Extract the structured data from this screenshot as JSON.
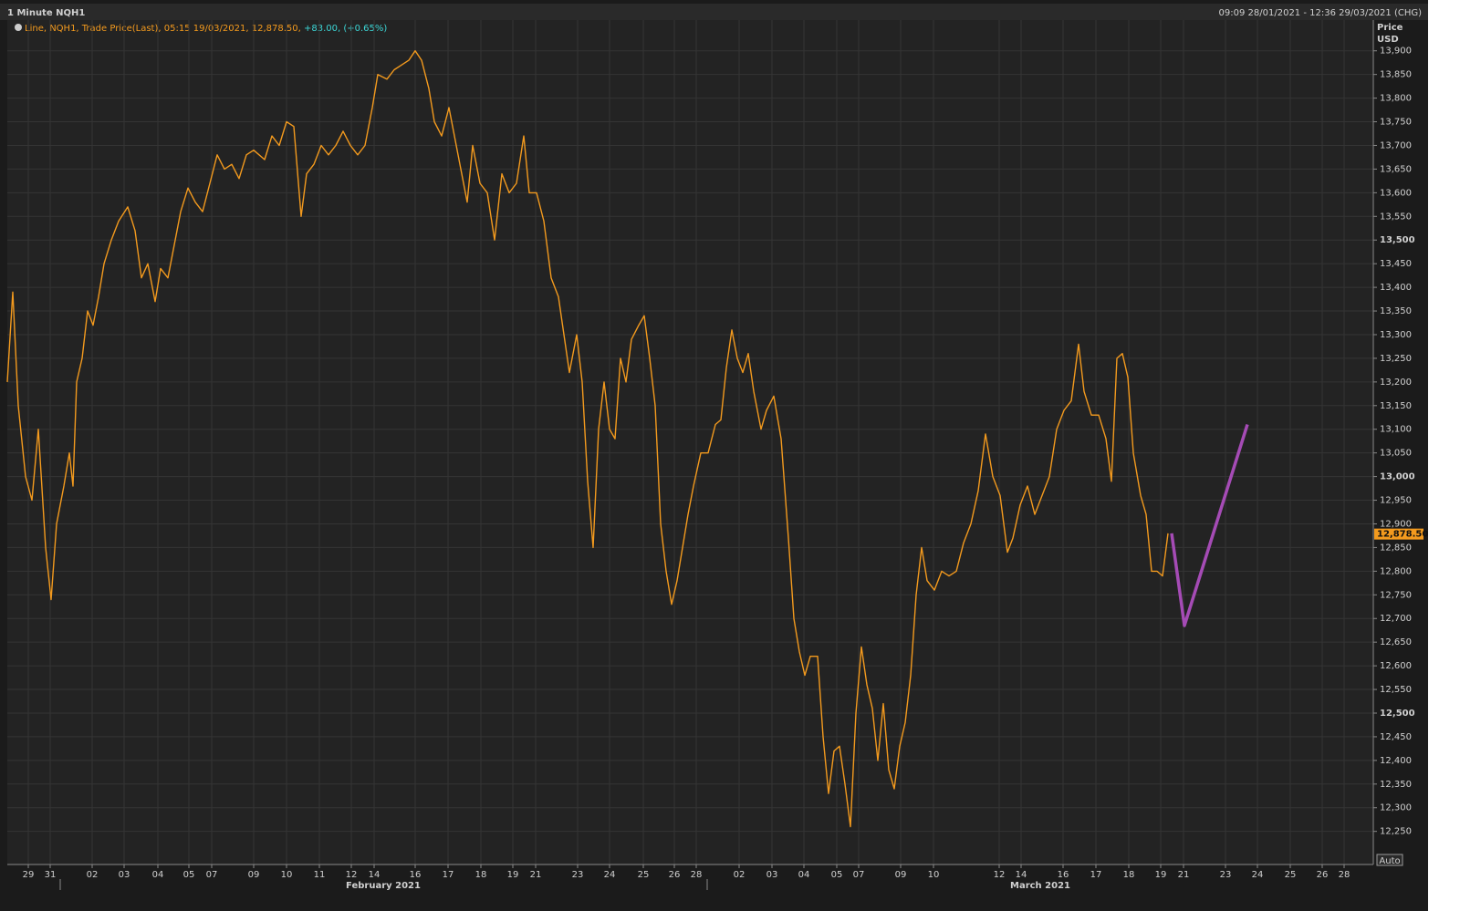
{
  "chart_data": {
    "type": "line",
    "title": "1 Minute NQH1",
    "range_text": "09:09 28/01/2021 - 12:36 29/03/2021 (CHG)",
    "legend_text": "Line, NQH1, Trade Price(Last), 05:15 19/03/2021, 12,878.50,",
    "change_text": "+83.00, (+0.65%)",
    "y_axis_label": "Price",
    "y_axis_unit": "USD",
    "scale_mode": "Auto",
    "months": [
      {
        "value": 420,
        "label": "February 2021"
      },
      {
        "value": 1140,
        "label": "March 2021"
      }
    ],
    "month_separators": [
      66,
      775
    ],
    "last_price": {
      "value": 12878.5,
      "label": "12,878.50"
    },
    "grid": true,
    "xlim": [
      8,
      1505
    ],
    "ylim": [
      12180,
      13965
    ],
    "xticks": [
      {
        "value": 31,
        "label": "29"
      },
      {
        "value": 55,
        "label": "31"
      },
      {
        "value": 101,
        "label": "02"
      },
      {
        "value": 136,
        "label": "03"
      },
      {
        "value": 173,
        "label": "04"
      },
      {
        "value": 207,
        "label": "05"
      },
      {
        "value": 232,
        "label": "07"
      },
      {
        "value": 278,
        "label": "09"
      },
      {
        "value": 314,
        "label": "10"
      },
      {
        "value": 350,
        "label": "11"
      },
      {
        "value": 385,
        "label": "12"
      },
      {
        "value": 410,
        "label": "14"
      },
      {
        "value": 455,
        "label": "16"
      },
      {
        "value": 491,
        "label": "17"
      },
      {
        "value": 527,
        "label": "18"
      },
      {
        "value": 562,
        "label": "19"
      },
      {
        "value": 587,
        "label": "21"
      },
      {
        "value": 633,
        "label": "23"
      },
      {
        "value": 668,
        "label": "24"
      },
      {
        "value": 705,
        "label": "25"
      },
      {
        "value": 739,
        "label": "26"
      },
      {
        "value": 763,
        "label": "28"
      },
      {
        "value": 810,
        "label": "02"
      },
      {
        "value": 846,
        "label": "03"
      },
      {
        "value": 881,
        "label": "04"
      },
      {
        "value": 917,
        "label": "05"
      },
      {
        "value": 941,
        "label": "07"
      },
      {
        "value": 987,
        "label": "09"
      },
      {
        "value": 1023,
        "label": "10"
      },
      {
        "value": 1095,
        "label": "12"
      },
      {
        "value": 1119,
        "label": "14"
      },
      {
        "value": 1165,
        "label": "16"
      },
      {
        "value": 1201,
        "label": "17"
      },
      {
        "value": 1237,
        "label": "18"
      },
      {
        "value": 1272,
        "label": "19"
      },
      {
        "value": 1297,
        "label": "21"
      },
      {
        "value": 1343,
        "label": "23"
      },
      {
        "value": 1378,
        "label": "24"
      },
      {
        "value": 1414,
        "label": "25"
      },
      {
        "value": 1449,
        "label": "26"
      },
      {
        "value": 1473,
        "label": "28"
      }
    ],
    "yticks": [
      {
        "value": 12250,
        "label": "12,250"
      },
      {
        "value": 12300,
        "label": "12,300"
      },
      {
        "value": 12350,
        "label": "12,350"
      },
      {
        "value": 12400,
        "label": "12,400"
      },
      {
        "value": 12450,
        "label": "12,450"
      },
      {
        "value": 12500,
        "label": "12,500"
      },
      {
        "value": 12550,
        "label": "12,550"
      },
      {
        "value": 12600,
        "label": "12,600"
      },
      {
        "value": 12650,
        "label": "12,650"
      },
      {
        "value": 12700,
        "label": "12,700"
      },
      {
        "value": 12750,
        "label": "12,750"
      },
      {
        "value": 12800,
        "label": "12,800"
      },
      {
        "value": 12850,
        "label": "12,850"
      },
      {
        "value": 12900,
        "label": "12,900"
      },
      {
        "value": 12950,
        "label": "12,950"
      },
      {
        "value": 13000,
        "label": "13,000"
      },
      {
        "value": 13050,
        "label": "13,050"
      },
      {
        "value": 13100,
        "label": "13,100"
      },
      {
        "value": 13150,
        "label": "13,150"
      },
      {
        "value": 13200,
        "label": "13,200"
      },
      {
        "value": 13250,
        "label": "13,250"
      },
      {
        "value": 13300,
        "label": "13,300"
      },
      {
        "value": 13350,
        "label": "13,350"
      },
      {
        "value": 13400,
        "label": "13,400"
      },
      {
        "value": 13450,
        "label": "13,450"
      },
      {
        "value": 13500,
        "label": "13,500"
      },
      {
        "value": 13550,
        "label": "13,550"
      },
      {
        "value": 13600,
        "label": "13,600"
      },
      {
        "value": 13650,
        "label": "13,650"
      },
      {
        "value": 13700,
        "label": "13,700"
      },
      {
        "value": 13750,
        "label": "13,750"
      },
      {
        "value": 13800,
        "label": "13,800"
      },
      {
        "value": 13850,
        "label": "13,850"
      },
      {
        "value": 13900,
        "label": "13,900"
      }
    ],
    "series": [
      {
        "name": "NQH1",
        "color": "#f39a1e",
        "x": [
          8,
          14,
          20,
          28,
          35,
          42,
          50,
          56,
          62,
          70,
          76,
          80,
          84,
          90,
          96,
          102,
          108,
          114,
          122,
          130,
          140,
          148,
          155,
          162,
          170,
          176,
          184,
          190,
          198,
          206,
          214,
          222,
          230,
          238,
          246,
          254,
          262,
          270,
          278,
          290,
          298,
          306,
          314,
          322,
          330,
          336,
          344,
          352,
          360,
          368,
          376,
          384,
          392,
          400,
          408,
          414,
          424,
          432,
          440,
          448,
          455,
          462,
          470,
          476,
          484,
          492,
          500,
          506,
          512,
          518,
          526,
          534,
          542,
          550,
          558,
          566,
          574,
          580,
          588,
          596,
          604,
          612,
          618,
          624,
          632,
          638,
          644,
          650,
          656,
          662,
          668,
          674,
          680,
          686,
          692,
          700,
          706,
          712,
          718,
          724,
          730,
          736,
          742,
          748,
          754,
          760,
          768,
          776,
          784,
          790,
          796,
          802,
          808,
          814,
          820,
          826,
          834,
          840,
          848,
          856,
          864,
          870,
          876,
          882,
          888,
          896,
          902,
          908,
          914,
          920,
          926,
          932,
          938,
          944,
          950,
          956,
          962,
          968,
          974,
          980,
          986,
          992,
          998,
          1004,
          1010,
          1016,
          1024,
          1032,
          1040,
          1048,
          1056,
          1064,
          1072,
          1080,
          1088,
          1096,
          1104,
          1110,
          1118,
          1126,
          1134,
          1142,
          1150,
          1158,
          1166,
          1174,
          1182,
          1188,
          1196,
          1204,
          1212,
          1218,
          1224,
          1230,
          1236,
          1242,
          1250,
          1256,
          1262,
          1268,
          1274,
          1280
        ],
        "values": [
          13200,
          13390,
          13150,
          13000,
          12950,
          13100,
          12850,
          12740,
          12900,
          12980,
          13050,
          12980,
          13200,
          13250,
          13350,
          13320,
          13380,
          13450,
          13500,
          13540,
          13570,
          13520,
          13420,
          13450,
          13370,
          13440,
          13420,
          13480,
          13560,
          13610,
          13580,
          13560,
          13620,
          13680,
          13650,
          13660,
          13630,
          13680,
          13690,
          13670,
          13720,
          13700,
          13750,
          13740,
          13550,
          13640,
          13660,
          13700,
          13680,
          13700,
          13730,
          13700,
          13680,
          13700,
          13780,
          13850,
          13840,
          13860,
          13870,
          13880,
          13900,
          13880,
          13820,
          13750,
          13720,
          13780,
          13700,
          13640,
          13580,
          13700,
          13620,
          13600,
          13500,
          13640,
          13600,
          13620,
          13720,
          13600,
          13600,
          13540,
          13420,
          13380,
          13300,
          13220,
          13300,
          13200,
          12990,
          12850,
          13100,
          13200,
          13100,
          13080,
          13250,
          13200,
          13290,
          13320,
          13340,
          13250,
          13150,
          12900,
          12800,
          12730,
          12780,
          12850,
          12920,
          12980,
          13050,
          13050,
          13110,
          13120,
          13230,
          13310,
          13250,
          13220,
          13260,
          13180,
          13100,
          13140,
          13170,
          13080,
          12870,
          12700,
          12630,
          12580,
          12620,
          12620,
          12450,
          12330,
          12420,
          12430,
          12350,
          12260,
          12500,
          12640,
          12560,
          12510,
          12400,
          12520,
          12380,
          12340,
          12430,
          12480,
          12580,
          12750,
          12850,
          12780,
          12760,
          12800,
          12790,
          12800,
          12860,
          12900,
          12970,
          13090,
          13000,
          12960,
          12840,
          12870,
          12940,
          12980,
          12920,
          12960,
          13000,
          13100,
          13140,
          13160,
          13280,
          13180,
          13130,
          13130,
          13080,
          12990,
          13250,
          13260,
          13210,
          13050,
          12960,
          12920,
          12800,
          12800,
          12790,
          12880
        ]
      },
      {
        "color": "#a54bb5",
        "x": [
          1284,
          1298,
          1367
        ],
        "values": [
          12880,
          12685,
          13110
        ]
      }
    ]
  }
}
